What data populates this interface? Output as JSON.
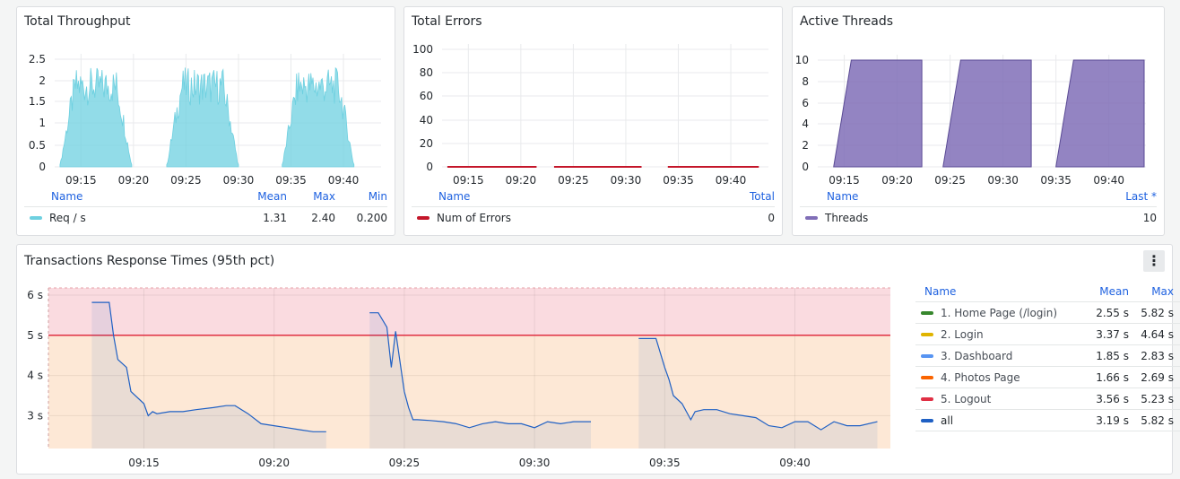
{
  "panels": {
    "throughput": {
      "title": "Total Throughput",
      "legend_headers": [
        "Name",
        "Mean",
        "Max",
        "Min"
      ],
      "legend_rows": [
        {
          "name": "Req / s",
          "color": "#6ed0e0",
          "values": [
            "1.31",
            "2.40",
            "0.200"
          ]
        }
      ]
    },
    "errors": {
      "title": "Total Errors",
      "legend_headers": [
        "Name",
        "Total"
      ],
      "legend_rows": [
        {
          "name": "Num of Errors",
          "color": "#c4162a",
          "values": [
            "0"
          ]
        }
      ]
    },
    "threads": {
      "title": "Active Threads",
      "legend_headers": [
        "Name",
        "Last *"
      ],
      "legend_rows": [
        {
          "name": "Threads",
          "color": "#806eb7",
          "values": [
            "10"
          ]
        }
      ]
    },
    "response": {
      "title": "Transactions Response Times (95th pct)",
      "menu_icon": "kebab-menu-icon",
      "legend_headers": [
        "Name",
        "Mean",
        "Max"
      ],
      "legend_rows": [
        {
          "name": "1. Home Page (/login)",
          "color": "#37872d",
          "mean": "2.55 s",
          "max": "5.82 s"
        },
        {
          "name": "2. Login",
          "color": "#e0b400",
          "mean": "3.37 s",
          "max": "4.64 s"
        },
        {
          "name": "3. Dashboard",
          "color": "#5794f2",
          "mean": "1.85 s",
          "max": "2.83 s"
        },
        {
          "name": "4. Photos Page",
          "color": "#fa6400",
          "mean": "1.66 s",
          "max": "2.69 s"
        },
        {
          "name": "5. Logout",
          "color": "#e02f44",
          "mean": "3.56 s",
          "max": "5.23 s"
        },
        {
          "name": "all",
          "color": "#1f60c4",
          "mean": "3.19 s",
          "max": "5.82 s"
        }
      ]
    }
  },
  "chart_data": [
    {
      "id": "throughput",
      "type": "area",
      "title": "Total Throughput",
      "x_ticks": [
        "09:15",
        "09:20",
        "09:25",
        "09:30",
        "09:35",
        "09:40"
      ],
      "y_ticks": [
        "2.5",
        "2",
        "1.5",
        "1",
        "0.5",
        "0"
      ],
      "ylim": [
        0,
        2.6
      ],
      "series": [
        {
          "name": "Req / s",
          "color": "#6ed0e0",
          "segments": [
            {
              "start": "09:13:00",
              "end": "09:19:50",
              "peak": 2.4
            },
            {
              "start": "09:23:10",
              "end": "09:30:00",
              "peak": 2.4
            },
            {
              "start": "09:34:10",
              "end": "09:41:00",
              "peak": 2.4
            }
          ]
        }
      ]
    },
    {
      "id": "errors",
      "type": "line",
      "title": "Total Errors",
      "x_ticks": [
        "09:15",
        "09:20",
        "09:25",
        "09:30",
        "09:35",
        "09:40"
      ],
      "y_ticks": [
        "100",
        "80",
        "60",
        "40",
        "20",
        "0"
      ],
      "ylim": [
        0,
        100
      ],
      "series": [
        {
          "name": "Num of Errors",
          "color": "#c4162a",
          "segments": [
            {
              "start": "09:13:00",
              "end": "09:21:30",
              "value": 0
            },
            {
              "start": "09:23:10",
              "end": "09:31:30",
              "value": 0
            },
            {
              "start": "09:34:00",
              "end": "09:42:40",
              "value": 0
            }
          ]
        }
      ]
    },
    {
      "id": "threads",
      "type": "area",
      "title": "Active Threads",
      "x_ticks": [
        "09:15",
        "09:20",
        "09:25",
        "09:30",
        "09:35",
        "09:40"
      ],
      "y_ticks": [
        "10",
        "8",
        "6",
        "4",
        "2",
        "0"
      ],
      "ylim": [
        0,
        11
      ],
      "series": [
        {
          "name": "Threads",
          "color": "#806eb7",
          "segments": [
            {
              "ramp_start": "09:14:00",
              "ramp_end": "09:15:40",
              "end": "09:22:20",
              "value": 10
            },
            {
              "ramp_start": "09:24:20",
              "ramp_end": "09:26:00",
              "end": "09:32:40",
              "value": 10
            },
            {
              "ramp_start": "09:35:00",
              "ramp_end": "09:36:40",
              "end": "09:43:20",
              "value": 10
            }
          ]
        }
      ]
    },
    {
      "id": "response",
      "type": "line",
      "title": "Transactions Response Times (95th pct)",
      "x_ticks": [
        "09:15",
        "09:20",
        "09:25",
        "09:30",
        "09:35",
        "09:40"
      ],
      "y_ticks": [
        "6 s",
        "5 s",
        "4 s",
        "3 s"
      ],
      "ylim": [
        2.35,
        6.2
      ],
      "threshold": 5,
      "series": [
        {
          "name": "all",
          "color": "#1f60c4",
          "segments": [
            {
              "x": [
                "09:13:00",
                "09:13:40",
                "09:13:50",
                "09:14:00",
                "09:14:10",
                "09:14:20",
                "09:14:30",
                "09:15:00",
                "09:15:10",
                "09:15:20",
                "09:15:30",
                "09:16:00",
                "09:16:30",
                "09:17:00",
                "09:17:40",
                "09:18:10",
                "09:18:30",
                "09:19:00",
                "09:19:30",
                "09:20:00",
                "09:20:30",
                "09:21:00",
                "09:21:30",
                "09:22:00"
              ],
              "y": [
                5.82,
                5.82,
                5.0,
                4.4,
                4.3,
                4.2,
                3.6,
                3.3,
                3.0,
                3.1,
                3.05,
                3.1,
                3.1,
                3.15,
                3.2,
                3.25,
                3.25,
                3.05,
                2.8,
                2.75,
                2.7,
                2.65,
                2.6,
                2.6
              ]
            },
            {
              "x": [
                "09:23:40",
                "09:24:00",
                "09:24:20",
                "09:24:30",
                "09:24:40",
                "09:25:00",
                "09:25:10",
                "09:25:20",
                "09:25:30",
                "09:26:00",
                "09:26:30",
                "09:27:00",
                "09:27:30",
                "09:28:00",
                "09:28:30",
                "09:29:00",
                "09:29:30",
                "09:30:00",
                "09:30:30",
                "09:31:00",
                "09:31:30",
                "09:32:10"
              ],
              "y": [
                5.56,
                5.56,
                5.2,
                4.2,
                5.1,
                3.6,
                3.2,
                2.9,
                2.9,
                2.88,
                2.85,
                2.8,
                2.7,
                2.8,
                2.85,
                2.8,
                2.8,
                2.7,
                2.85,
                2.8,
                2.85,
                2.85
              ]
            },
            {
              "x": [
                "09:34:00",
                "09:34:40",
                "09:35:00",
                "09:35:10",
                "09:35:20",
                "09:35:40",
                "09:36:00",
                "09:36:10",
                "09:36:30",
                "09:37:00",
                "09:37:30",
                "09:38:00",
                "09:38:30",
                "09:39:00",
                "09:39:30",
                "09:40:00",
                "09:40:30",
                "09:41:00",
                "09:41:30",
                "09:42:00",
                "09:42:30",
                "09:43:10"
              ],
              "y": [
                4.92,
                4.92,
                4.2,
                3.9,
                3.5,
                3.3,
                2.9,
                3.1,
                3.15,
                3.15,
                3.05,
                3.0,
                2.95,
                2.75,
                2.7,
                2.85,
                2.85,
                2.65,
                2.85,
                2.75,
                2.75,
                2.85
              ]
            }
          ]
        }
      ]
    }
  ]
}
